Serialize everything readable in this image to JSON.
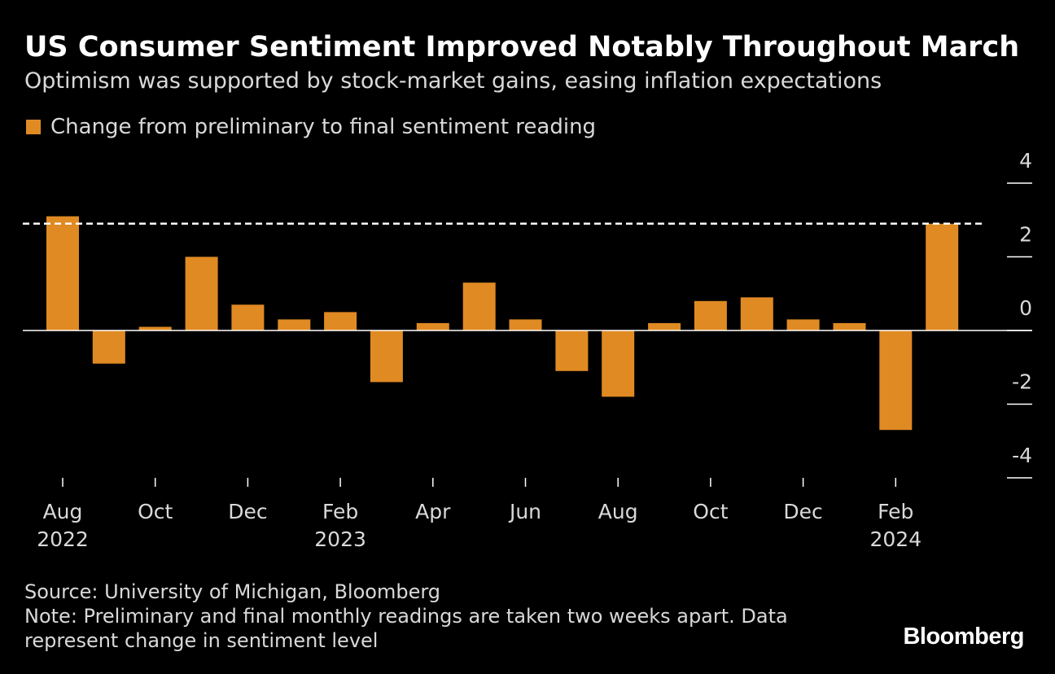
{
  "header": {
    "title": "US Consumer Sentiment Improved Notably Throughout March",
    "subtitle": "Optimism was supported by stock-market gains, easing inflation expectations"
  },
  "legend": {
    "label": "Change from preliminary to final sentiment reading"
  },
  "footer": {
    "source": "Source: University of Michigan, Bloomberg",
    "note_line1": "Note: Preliminary and final monthly readings are taken two weeks apart. Data",
    "note_line2": "represent change in sentiment level"
  },
  "brand": {
    "logo_text": "Bloomberg"
  },
  "colors": {
    "background": "#000000",
    "bar": "#e08a23",
    "axis_text": "#d9d9d9",
    "reference_line": "#ffffff"
  },
  "chart_data": {
    "type": "bar",
    "legend": "Change from preliminary to final sentiment reading",
    "legend_position": "top-left",
    "grid": false,
    "y_axis_side": "right",
    "categories": [
      "Aug 2022",
      "Sep 2022",
      "Oct 2022",
      "Nov 2022",
      "Dec 2022",
      "Jan 2023",
      "Feb 2023",
      "Mar 2023",
      "Apr 2023",
      "May 2023",
      "Jun 2023",
      "Jul 2023",
      "Aug 2023",
      "Sep 2023",
      "Oct 2023",
      "Nov 2023",
      "Dec 2023",
      "Jan 2024",
      "Feb 2024",
      "Mar 2024"
    ],
    "values": [
      3.1,
      -0.9,
      0.1,
      2.0,
      0.7,
      0.3,
      0.5,
      -1.4,
      0.2,
      1.3,
      0.3,
      -1.1,
      -1.8,
      0.2,
      0.8,
      0.9,
      0.3,
      0.2,
      -2.7,
      2.9
    ],
    "ylim": [
      -4,
      4
    ],
    "yticks": [
      4,
      2,
      0,
      -2,
      -4
    ],
    "ytick_labels": [
      "4",
      "2",
      "0",
      "-2",
      "-4"
    ],
    "xtick_labels": [
      {
        "index": 0,
        "line1": "Aug",
        "line2": "2022"
      },
      {
        "index": 2,
        "line1": "Oct",
        "line2": ""
      },
      {
        "index": 4,
        "line1": "Dec",
        "line2": ""
      },
      {
        "index": 6,
        "line1": "Feb",
        "line2": "2023"
      },
      {
        "index": 8,
        "line1": "Apr",
        "line2": ""
      },
      {
        "index": 10,
        "line1": "Jun",
        "line2": ""
      },
      {
        "index": 12,
        "line1": "Aug",
        "line2": ""
      },
      {
        "index": 14,
        "line1": "Oct",
        "line2": ""
      },
      {
        "index": 16,
        "line1": "Dec",
        "line2": ""
      },
      {
        "index": 18,
        "line1": "Feb",
        "line2": "2024"
      }
    ],
    "reference_line": 2.9
  }
}
